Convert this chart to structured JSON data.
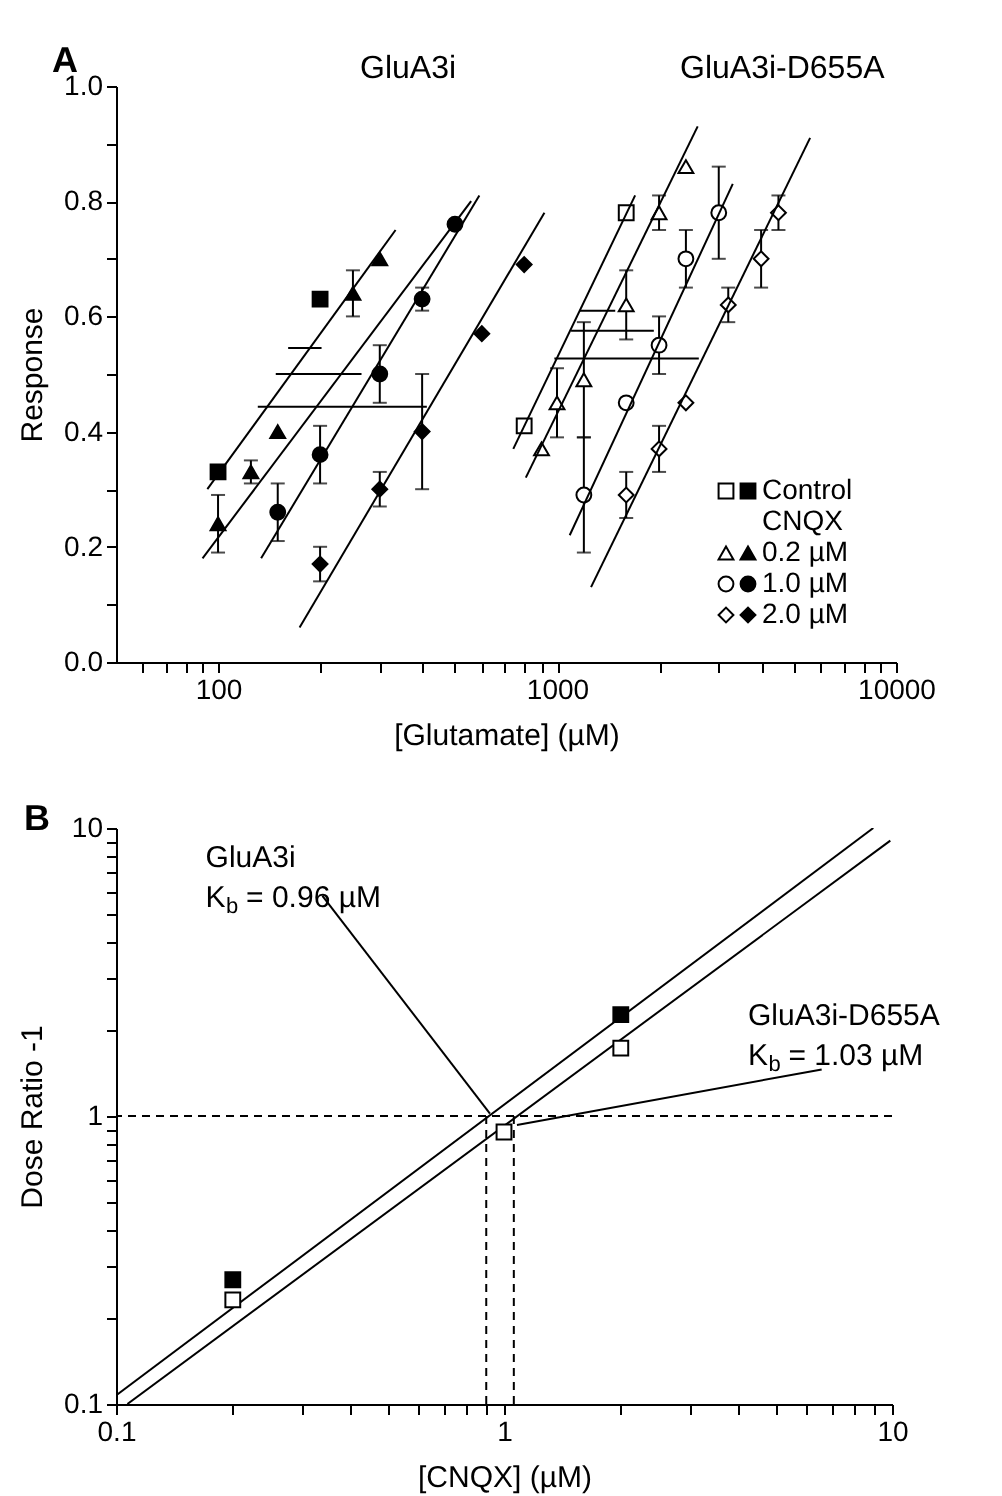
{
  "chart_data": [
    {
      "type": "scatter",
      "xlabel": "[Glutamate] (µM)",
      "ylabel": "Response",
      "legend_title": "CNQX",
      "legend": "bottom right",
      "log": "x",
      "grid": false,
      "xlim": [
        50,
        10000
      ],
      "ylim": [
        0,
        1
      ],
      "xticks": [
        {
          "value": 60,
          "label": null
        },
        {
          "value": 70,
          "label": null
        },
        {
          "value": 80,
          "label": null
        },
        {
          "value": 90,
          "label": null
        },
        100,
        {
          "value": 200,
          "label": null
        },
        {
          "value": 300,
          "label": null
        },
        {
          "value": 400,
          "label": null
        },
        {
          "value": 500,
          "label": null
        },
        {
          "value": 600,
          "label": null
        },
        {
          "value": 700,
          "label": null
        },
        {
          "value": 800,
          "label": null
        },
        {
          "value": 900,
          "label": null
        },
        1000,
        {
          "value": 2000,
          "label": null
        },
        {
          "value": 3000,
          "label": null
        },
        {
          "value": 4000,
          "label": null
        },
        {
          "value": 5000,
          "label": null
        },
        {
          "value": 6000,
          "label": null
        },
        {
          "value": 7000,
          "label": null
        },
        {
          "value": 8000,
          "label": null
        },
        {
          "value": 9000,
          "label": null
        },
        10000
      ],
      "yticks": [
        {
          "value": 0,
          "label": "0.0"
        },
        {
          "value": 0.1,
          "label": null
        },
        0.2,
        {
          "value": 0.3,
          "label": null
        },
        0.4,
        {
          "value": 0.5,
          "label": null
        },
        0.6,
        {
          "value": 0.7,
          "label": null
        },
        0.8,
        {
          "value": 0.9,
          "label": null
        },
        {
          "value": 1,
          "label": "1.0"
        }
      ],
      "annotations": [
        "A",
        "GluA3i",
        "GluA3i-D655A"
      ],
      "series": [
        {
          "name": "Control",
          "marker": "square",
          "color": "#000000",
          "x": [
            100,
            200
          ],
          "values": [
            0.33,
            0.63
          ]
        },
        {
          "name": "0.2 µM",
          "marker": "triangle",
          "color": "#000000",
          "x": [
            100,
            125,
            150,
            250,
            300
          ],
          "values": [
            0.24,
            0.33,
            0.4,
            0.64,
            0.7
          ],
          "errors": [
            0.05,
            0.02,
            null,
            0.04,
            null
          ]
        },
        {
          "name": "1.0 µM",
          "marker": "circle",
          "color": "#000000",
          "x": [
            150,
            200,
            300,
            400,
            500
          ],
          "values": [
            0.26,
            0.36,
            0.5,
            0.63,
            0.76
          ],
          "errors": [
            0.05,
            0.05,
            0.05,
            0.02,
            null
          ]
        },
        {
          "name": "2.0 µM",
          "marker": "diamond",
          "color": "#000000",
          "x": [
            200,
            300,
            400,
            600,
            800
          ],
          "values": [
            0.17,
            0.3,
            0.4,
            0.57,
            0.69
          ],
          "errors": [
            0.03,
            0.03,
            0.1,
            null,
            null
          ]
        },
        {
          "marker": "square",
          "color": "#ffffff",
          "x": [
            800,
            1600
          ],
          "values": [
            0.41,
            0.78
          ]
        },
        {
          "marker": "triangle",
          "color": "#ffffff",
          "x": [
            900,
            1000,
            1200,
            1600,
            2000,
            2400
          ],
          "values": [
            0.37,
            0.45,
            0.49,
            0.62,
            0.78,
            0.86
          ],
          "errors": [
            null,
            0.06,
            0.1,
            0.06,
            0.03,
            null
          ]
        },
        {
          "marker": "circle",
          "color": "#ffffff",
          "x": [
            1200,
            1600,
            2000,
            2400,
            3000
          ],
          "values": [
            0.29,
            0.45,
            0.55,
            0.7,
            0.78
          ],
          "errors": [
            0.1,
            null,
            0.05,
            0.05,
            0.08
          ]
        },
        {
          "marker": "diamond",
          "color": "#ffffff",
          "x": [
            1600,
            2000,
            2400,
            3200,
            4000,
            4500
          ],
          "values": [
            0.29,
            0.37,
            0.45,
            0.62,
            0.7,
            0.78
          ],
          "errors": [
            0.04,
            0.04,
            null,
            0.03,
            0.05,
            0.03
          ]
        },
        {
          "type": "line",
          "color": "#000000",
          "x": [
            93,
            334
          ],
          "values": [
            0.3,
            0.75
          ]
        },
        {
          "type": "line",
          "color": "#000000",
          "x": [
            90,
            558
          ],
          "values": [
            0.18,
            0.8
          ]
        },
        {
          "type": "line",
          "color": "#000000",
          "x": [
            134,
            590
          ],
          "values": [
            0.18,
            0.81
          ]
        },
        {
          "type": "line",
          "color": "#000000",
          "x": [
            174,
            918
          ],
          "values": [
            0.06,
            0.78
          ]
        },
        {
          "type": "line",
          "color": "#000000",
          "x": [
            743,
            1700
          ],
          "values": [
            0.37,
            0.81
          ]
        },
        {
          "type": "line",
          "color": "#000000",
          "x": [
            809,
            2600
          ],
          "values": [
            0.32,
            0.93
          ]
        },
        {
          "type": "line",
          "color": "#000000",
          "x": [
            1090,
            3300
          ],
          "values": [
            0.22,
            0.83
          ]
        },
        {
          "type": "line",
          "color": "#000000",
          "x": [
            1260,
            5580
          ],
          "values": [
            0.13,
            0.91
          ]
        },
        {
          "type": "line",
          "color": "#000000",
          "x": [
            161,
            202
          ],
          "values": [
            0.545,
            0.545
          ]
        },
        {
          "type": "line",
          "color": "#000000",
          "x": [
            148,
            265
          ],
          "values": [
            0.5,
            0.5
          ]
        },
        {
          "type": "line",
          "color": "#000000",
          "x": [
            131,
            413
          ],
          "values": [
            0.443,
            0.443
          ]
        },
        {
          "type": "line",
          "color": "#000000",
          "x": [
            1165,
            1485
          ],
          "values": [
            0.61,
            0.61
          ]
        },
        {
          "type": "line",
          "color": "#000000",
          "x": [
            1100,
            1930
          ],
          "values": [
            0.575,
            0.575
          ]
        },
        {
          "type": "line",
          "color": "#000000",
          "x": [
            982,
            2620
          ],
          "values": [
            0.527,
            0.527
          ]
        }
      ]
    },
    {
      "type": "scatter",
      "xlabel": "[CNQX] (µM)",
      "ylabel": "Dose Ratio -1",
      "log": "xy",
      "grid": false,
      "xlim": [
        0.1,
        10
      ],
      "ylim": [
        0.1,
        10
      ],
      "xticks": [
        0.1,
        {
          "value": 0.2,
          "label": null
        },
        {
          "value": 0.3,
          "label": null
        },
        {
          "value": 0.4,
          "label": null
        },
        {
          "value": 0.5,
          "label": null
        },
        {
          "value": 0.6,
          "label": null
        },
        {
          "value": 0.7,
          "label": null
        },
        {
          "value": 0.8,
          "label": null
        },
        {
          "value": 0.9,
          "label": null
        },
        1,
        {
          "value": 2,
          "label": null
        },
        {
          "value": 3,
          "label": null
        },
        {
          "value": 4,
          "label": null
        },
        {
          "value": 5,
          "label": null
        },
        {
          "value": 6,
          "label": null
        },
        {
          "value": 7,
          "label": null
        },
        {
          "value": 8,
          "label": null
        },
        {
          "value": 9,
          "label": null
        },
        10
      ],
      "yticks": [
        0.1,
        {
          "value": 0.2,
          "label": null
        },
        {
          "value": 0.3,
          "label": null
        },
        {
          "value": 0.4,
          "label": null
        },
        {
          "value": 0.5,
          "label": null
        },
        {
          "value": 0.6,
          "label": null
        },
        {
          "value": 0.7,
          "label": null
        },
        {
          "value": 0.8,
          "label": null
        },
        {
          "value": 0.9,
          "label": null
        },
        1,
        {
          "value": 2,
          "label": null
        },
        {
          "value": 3,
          "label": null
        },
        {
          "value": 4,
          "label": null
        },
        {
          "value": 5,
          "label": null
        },
        {
          "value": 6,
          "label": null
        },
        {
          "value": 7,
          "label": null
        },
        {
          "value": 8,
          "label": null
        },
        {
          "value": 9,
          "label": null
        },
        10
      ],
      "ref_lines": [
        {
          "axis": "y",
          "value": 1,
          "line_style": "dashed",
          "color": "#000000"
        }
      ],
      "annotations": [
        "B",
        {
          "text": "GluA3i\nK$_{b}$ = 0.96 µM",
          "x": 0.92,
          "y": 1.02
        },
        {
          "text": "GluA3i-D655A\nK$_{b}$ = 1.03 µM",
          "x": 1.08,
          "y": 0.93
        }
      ],
      "series": [
        {
          "type": "line",
          "color": "#000000",
          "x": [
            0.1,
            8.95
          ],
          "values": [
            0.107,
            10
          ]
        },
        {
          "type": "line",
          "color": "#000000",
          "x": [
            0.107,
            9.9
          ],
          "values": [
            0.1,
            9.04
          ]
        },
        {
          "type": "line",
          "color": "#000000",
          "line_style": "dashed",
          "x": [
            0.9,
            0.9
          ],
          "values": [
            0.1,
            1
          ]
        },
        {
          "type": "line",
          "color": "#000000",
          "line_style": "dashed",
          "x": [
            1.06,
            1.06
          ],
          "values": [
            0.1,
            1
          ]
        },
        {
          "marker": "square",
          "color": "#000000",
          "x": [
            0.2,
            2
          ],
          "values": [
            0.27,
            2.25
          ]
        },
        {
          "marker": "square",
          "color": "#ffffff",
          "x": [
            0.2,
            1,
            2
          ],
          "values": [
            0.23,
            0.88,
            1.72
          ]
        }
      ]
    }
  ]
}
